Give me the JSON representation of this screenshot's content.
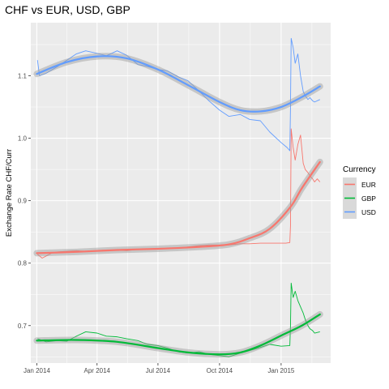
{
  "chart_data": {
    "type": "line",
    "title": "CHF vs EUR, USD, GBP",
    "xlabel": "",
    "ylabel": "Exchange Rate CHF/Curr",
    "x_ticks": [
      "Jan 2014",
      "Apr 2014",
      "Jul 2014",
      "Oct 2014",
      "Jan 2015"
    ],
    "x_tick_dates": [
      "2014-01-01",
      "2014-04-01",
      "2014-07-01",
      "2014-10-01",
      "2015-01-01"
    ],
    "xlim": [
      "2013-12-23",
      "2015-03-16"
    ],
    "y_ticks": [
      "0.7",
      "0.8",
      "0.9",
      "1.0",
      "1.1"
    ],
    "y_tick_values": [
      0.7,
      0.8,
      0.9,
      1.0,
      1.1
    ],
    "ylim": [
      0.64,
      1.185
    ],
    "grid": true,
    "legend": {
      "title": "Currency",
      "position": "right"
    },
    "series": [
      {
        "name": "EUR",
        "color": "#F8766D",
        "raw": [
          [
            "2014-01-02",
            0.814
          ],
          [
            "2014-01-09",
            0.808
          ],
          [
            "2014-01-16",
            0.812
          ],
          [
            "2014-01-23",
            0.816
          ],
          [
            "2014-02-01",
            0.818
          ],
          [
            "2014-02-15",
            0.819
          ],
          [
            "2014-03-01",
            0.82
          ],
          [
            "2014-03-15",
            0.819
          ],
          [
            "2014-04-01",
            0.82
          ],
          [
            "2014-04-15",
            0.821
          ],
          [
            "2014-05-01",
            0.821
          ],
          [
            "2014-05-15",
            0.82
          ],
          [
            "2014-06-01",
            0.822
          ],
          [
            "2014-06-15",
            0.822
          ],
          [
            "2014-07-01",
            0.823
          ],
          [
            "2014-07-15",
            0.823
          ],
          [
            "2014-08-01",
            0.824
          ],
          [
            "2014-08-15",
            0.826
          ],
          [
            "2014-09-01",
            0.828
          ],
          [
            "2014-09-15",
            0.829
          ],
          [
            "2014-10-01",
            0.829
          ],
          [
            "2014-10-15",
            0.829
          ],
          [
            "2014-11-01",
            0.831
          ],
          [
            "2014-11-15",
            0.831
          ],
          [
            "2014-12-01",
            0.832
          ],
          [
            "2014-12-15",
            0.832
          ],
          [
            "2015-01-01",
            0.832
          ],
          [
            "2015-01-08",
            0.832
          ],
          [
            "2015-01-14",
            0.833
          ],
          [
            "2015-01-15",
            0.86
          ],
          [
            "2015-01-16",
            1.015
          ],
          [
            "2015-01-19",
            0.985
          ],
          [
            "2015-01-22",
            0.965
          ],
          [
            "2015-01-26",
            0.99
          ],
          [
            "2015-01-30",
            1.005
          ],
          [
            "2015-02-03",
            0.96
          ],
          [
            "2015-02-06",
            0.95
          ],
          [
            "2015-02-10",
            0.945
          ],
          [
            "2015-02-13",
            0.94
          ],
          [
            "2015-02-17",
            0.935
          ],
          [
            "2015-02-20",
            0.93
          ],
          [
            "2015-02-24",
            0.935
          ],
          [
            "2015-02-28",
            0.93
          ]
        ],
        "smooth": [
          [
            "2014-01-01",
            0.816
          ],
          [
            "2014-03-01",
            0.818
          ],
          [
            "2014-05-01",
            0.821
          ],
          [
            "2014-07-01",
            0.823
          ],
          [
            "2014-09-01",
            0.826
          ],
          [
            "2014-10-15",
            0.83
          ],
          [
            "2014-11-15",
            0.84
          ],
          [
            "2014-12-15",
            0.855
          ],
          [
            "2015-01-15",
            0.89
          ],
          [
            "2015-02-01",
            0.92
          ],
          [
            "2015-02-28",
            0.962
          ]
        ]
      },
      {
        "name": "GBP",
        "color": "#00BA38",
        "raw": [
          [
            "2014-01-02",
            0.679
          ],
          [
            "2014-01-15",
            0.674
          ],
          [
            "2014-02-01",
            0.676
          ],
          [
            "2014-02-15",
            0.675
          ],
          [
            "2014-03-01",
            0.683
          ],
          [
            "2014-03-15",
            0.69
          ],
          [
            "2014-04-01",
            0.688
          ],
          [
            "2014-04-15",
            0.683
          ],
          [
            "2014-05-01",
            0.682
          ],
          [
            "2014-05-15",
            0.679
          ],
          [
            "2014-06-01",
            0.676
          ],
          [
            "2014-06-15",
            0.67
          ],
          [
            "2014-07-01",
            0.668
          ],
          [
            "2014-07-15",
            0.664
          ],
          [
            "2014-08-01",
            0.658
          ],
          [
            "2014-08-15",
            0.656
          ],
          [
            "2014-09-01",
            0.658
          ],
          [
            "2014-09-15",
            0.654
          ],
          [
            "2014-10-01",
            0.652
          ],
          [
            "2014-10-15",
            0.65
          ],
          [
            "2014-11-01",
            0.656
          ],
          [
            "2014-11-15",
            0.66
          ],
          [
            "2014-12-01",
            0.665
          ],
          [
            "2014-12-15",
            0.67
          ],
          [
            "2015-01-01",
            0.667
          ],
          [
            "2015-01-14",
            0.668
          ],
          [
            "2015-01-15",
            0.7
          ],
          [
            "2015-01-16",
            0.768
          ],
          [
            "2015-01-19",
            0.745
          ],
          [
            "2015-01-22",
            0.755
          ],
          [
            "2015-01-26",
            0.74
          ],
          [
            "2015-01-30",
            0.73
          ],
          [
            "2015-02-03",
            0.72
          ],
          [
            "2015-02-06",
            0.71
          ],
          [
            "2015-02-10",
            0.7
          ],
          [
            "2015-02-13",
            0.695
          ],
          [
            "2015-02-17",
            0.692
          ],
          [
            "2015-02-20",
            0.688
          ],
          [
            "2015-02-28",
            0.69
          ]
        ],
        "smooth": [
          [
            "2014-01-01",
            0.676
          ],
          [
            "2014-03-01",
            0.677
          ],
          [
            "2014-05-01",
            0.674
          ],
          [
            "2014-07-01",
            0.664
          ],
          [
            "2014-08-15",
            0.657
          ],
          [
            "2014-10-01",
            0.654
          ],
          [
            "2014-11-01",
            0.657
          ],
          [
            "2014-12-01",
            0.668
          ],
          [
            "2015-01-01",
            0.684
          ],
          [
            "2015-02-01",
            0.7
          ],
          [
            "2015-02-28",
            0.718
          ]
        ]
      },
      {
        "name": "USD",
        "color": "#619CFF",
        "raw": [
          [
            "2014-01-02",
            1.125
          ],
          [
            "2014-01-05",
            1.1
          ],
          [
            "2014-01-15",
            1.104
          ],
          [
            "2014-02-01",
            1.115
          ],
          [
            "2014-02-15",
            1.125
          ],
          [
            "2014-03-01",
            1.135
          ],
          [
            "2014-03-15",
            1.14
          ],
          [
            "2014-04-01",
            1.136
          ],
          [
            "2014-04-15",
            1.132
          ],
          [
            "2014-05-01",
            1.14
          ],
          [
            "2014-05-15",
            1.133
          ],
          [
            "2014-06-01",
            1.118
          ],
          [
            "2014-06-15",
            1.115
          ],
          [
            "2014-07-01",
            1.11
          ],
          [
            "2014-07-15",
            1.108
          ],
          [
            "2014-08-01",
            1.098
          ],
          [
            "2014-08-15",
            1.092
          ],
          [
            "2014-09-01",
            1.075
          ],
          [
            "2014-09-15",
            1.06
          ],
          [
            "2014-10-01",
            1.045
          ],
          [
            "2014-10-15",
            1.035
          ],
          [
            "2014-11-01",
            1.038
          ],
          [
            "2014-11-15",
            1.03
          ],
          [
            "2014-12-01",
            1.028
          ],
          [
            "2014-12-15",
            1.01
          ],
          [
            "2015-01-01",
            0.993
          ],
          [
            "2015-01-10",
            0.985
          ],
          [
            "2015-01-14",
            0.98
          ],
          [
            "2015-01-15",
            1.05
          ],
          [
            "2015-01-16",
            1.16
          ],
          [
            "2015-01-19",
            1.145
          ],
          [
            "2015-01-22",
            1.12
          ],
          [
            "2015-01-26",
            1.135
          ],
          [
            "2015-01-30",
            1.1
          ],
          [
            "2015-02-03",
            1.075
          ],
          [
            "2015-02-06",
            1.068
          ],
          [
            "2015-02-10",
            1.062
          ],
          [
            "2015-02-13",
            1.065
          ],
          [
            "2015-02-17",
            1.06
          ],
          [
            "2015-02-20",
            1.058
          ],
          [
            "2015-02-28",
            1.062
          ]
        ],
        "smooth": [
          [
            "2014-01-01",
            1.103
          ],
          [
            "2014-02-15",
            1.122
          ],
          [
            "2014-04-01",
            1.131
          ],
          [
            "2014-05-15",
            1.128
          ],
          [
            "2014-07-01",
            1.11
          ],
          [
            "2014-08-15",
            1.085
          ],
          [
            "2014-10-01",
            1.058
          ],
          [
            "2014-11-01",
            1.045
          ],
          [
            "2014-12-01",
            1.043
          ],
          [
            "2015-01-01",
            1.05
          ],
          [
            "2015-02-01",
            1.066
          ],
          [
            "2015-02-28",
            1.083
          ]
        ]
      }
    ]
  }
}
